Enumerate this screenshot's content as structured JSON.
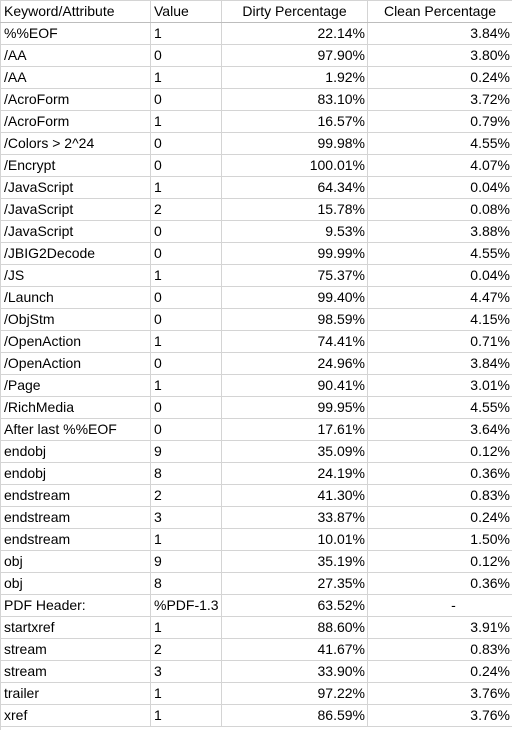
{
  "table": {
    "headers": [
      "Keyword/Attribute",
      "Value",
      "Dirty Percentage",
      "Clean Percentage"
    ],
    "rows": [
      [
        "%%EOF",
        "1",
        "22.14%",
        "3.84%"
      ],
      [
        "/AA",
        "0",
        "97.90%",
        "3.80%"
      ],
      [
        "/AA",
        "1",
        "1.92%",
        "0.24%"
      ],
      [
        "/AcroForm",
        "0",
        "83.10%",
        "3.72%"
      ],
      [
        "/AcroForm",
        "1",
        "16.57%",
        "0.79%"
      ],
      [
        "/Colors > 2^24",
        "0",
        "99.98%",
        "4.55%"
      ],
      [
        "/Encrypt",
        "0",
        "100.01%",
        "4.07%"
      ],
      [
        "/JavaScript",
        "1",
        "64.34%",
        "0.04%"
      ],
      [
        "/JavaScript",
        "2",
        "15.78%",
        "0.08%"
      ],
      [
        "/JavaScript",
        "0",
        "9.53%",
        "3.88%"
      ],
      [
        "/JBIG2Decode",
        "0",
        "99.99%",
        "4.55%"
      ],
      [
        "/JS",
        "1",
        "75.37%",
        "0.04%"
      ],
      [
        "/Launch",
        "0",
        "99.40%",
        "4.47%"
      ],
      [
        "/ObjStm",
        "0",
        "98.59%",
        "4.15%"
      ],
      [
        "/OpenAction",
        "1",
        "74.41%",
        "0.71%"
      ],
      [
        "/OpenAction",
        "0",
        "24.96%",
        "3.84%"
      ],
      [
        "/Page",
        "1",
        "90.41%",
        "3.01%"
      ],
      [
        "/RichMedia",
        "0",
        "99.95%",
        "4.55%"
      ],
      [
        "After last %%EOF",
        "0",
        "17.61%",
        "3.64%"
      ],
      [
        "endobj",
        "9",
        "35.09%",
        "0.12%"
      ],
      [
        "endobj",
        "8",
        "24.19%",
        "0.36%"
      ],
      [
        "endstream",
        "2",
        "41.30%",
        "0.83%"
      ],
      [
        "endstream",
        "3",
        "33.87%",
        "0.24%"
      ],
      [
        "endstream",
        "1",
        "10.01%",
        "1.50%"
      ],
      [
        "obj",
        "9",
        "35.19%",
        "0.12%"
      ],
      [
        "obj",
        "8",
        "27.35%",
        "0.36%"
      ],
      [
        "PDF Header:",
        "%PDF-1.3",
        "63.52%",
        "-"
      ],
      [
        "startxref",
        "1",
        "88.60%",
        "3.91%"
      ],
      [
        "stream",
        "2",
        "41.67%",
        "0.83%"
      ],
      [
        "stream",
        "3",
        "33.90%",
        "0.24%"
      ],
      [
        "trailer",
        "1",
        "97.22%",
        "3.76%"
      ],
      [
        "xref",
        "1",
        "86.59%",
        "3.76%"
      ]
    ]
  }
}
